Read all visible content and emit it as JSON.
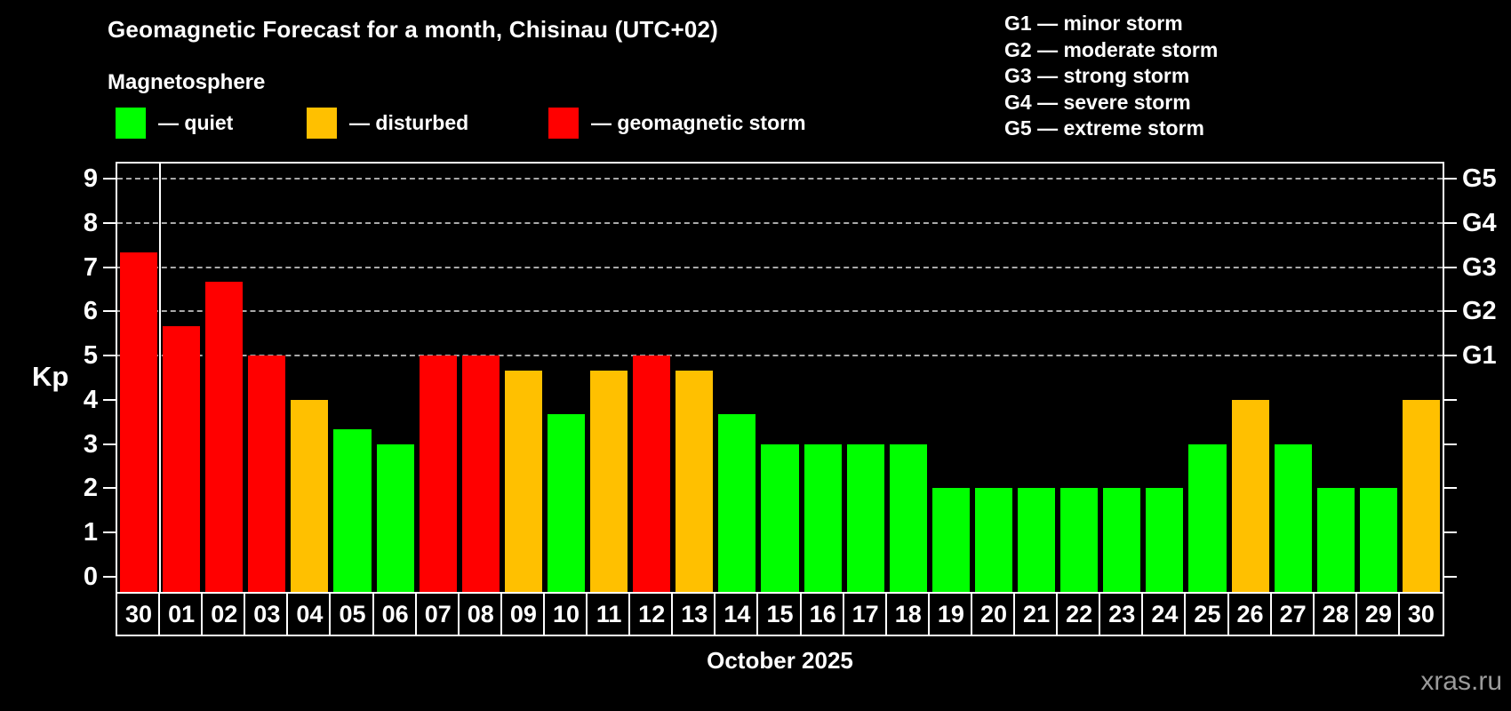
{
  "header": {
    "title": "Geomagnetic Forecast for a month, Chisinau (UTC+02)",
    "subtitle": "Magnetosphere"
  },
  "legend": [
    {
      "status": "quiet",
      "label": "— quiet"
    },
    {
      "status": "disturbed",
      "label": "— disturbed"
    },
    {
      "status": "storm",
      "label": "— geomagnetic storm"
    }
  ],
  "g_legend": [
    "G1 — minor storm",
    "G2 — moderate storm",
    "G3 — strong storm",
    "G4 — severe storm",
    "G5 — extreme storm"
  ],
  "colors": {
    "quiet": "#00ff00",
    "disturbed": "#ffc000",
    "storm": "#ff0000",
    "axis": "#ffffff",
    "grid": "#a9a9a9",
    "watermark": "#9b9b9b"
  },
  "watermark": "xras.ru",
  "chart_data": {
    "type": "bar",
    "title": "Geomagnetic Forecast for a month, Chisinau (UTC+02)",
    "subtitle": "Magnetosphere",
    "xlabel": "October 2025",
    "ylabel": "Kp",
    "ylim": [
      0,
      9
    ],
    "y_ticks": [
      0,
      1,
      2,
      3,
      4,
      5,
      6,
      7,
      8,
      9
    ],
    "grid": "dashed horizontal at Kp 5-9 only",
    "right_axis": [
      {
        "label": "G1",
        "kp": 5
      },
      {
        "label": "G2",
        "kp": 6
      },
      {
        "label": "G3",
        "kp": 7
      },
      {
        "label": "G4",
        "kp": 8
      },
      {
        "label": "G5",
        "kp": 9
      }
    ],
    "month_separator_after_index": 0,
    "categories": [
      "30",
      "01",
      "02",
      "03",
      "04",
      "05",
      "06",
      "07",
      "08",
      "09",
      "10",
      "11",
      "12",
      "13",
      "14",
      "15",
      "16",
      "17",
      "18",
      "19",
      "20",
      "21",
      "22",
      "23",
      "24",
      "25",
      "26",
      "27",
      "28",
      "29",
      "30"
    ],
    "values": [
      7.33,
      5.67,
      6.67,
      5,
      4,
      3.33,
      3,
      5,
      5,
      4.67,
      3.67,
      4.67,
      5,
      4.67,
      3.67,
      3,
      3,
      3,
      3,
      2,
      2,
      2,
      2,
      2,
      2,
      3,
      4,
      3,
      2,
      2,
      4
    ],
    "statuses": [
      "storm",
      "storm",
      "storm",
      "storm",
      "disturbed",
      "quiet",
      "quiet",
      "storm",
      "storm",
      "disturbed",
      "quiet",
      "disturbed",
      "storm",
      "disturbed",
      "quiet",
      "quiet",
      "quiet",
      "quiet",
      "quiet",
      "quiet",
      "quiet",
      "quiet",
      "quiet",
      "quiet",
      "quiet",
      "quiet",
      "disturbed",
      "quiet",
      "quiet",
      "quiet",
      "disturbed"
    ]
  }
}
